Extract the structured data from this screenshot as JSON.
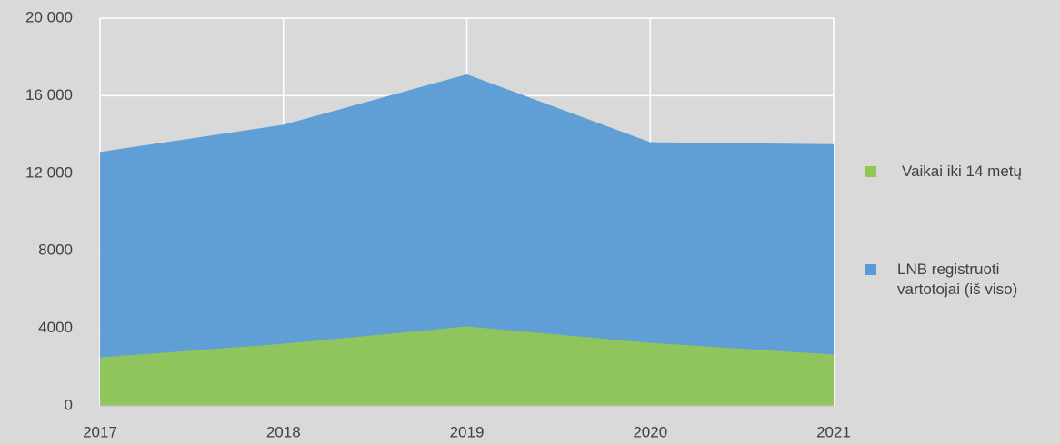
{
  "chart_data": {
    "type": "area",
    "categories": [
      "2017",
      "2018",
      "2019",
      "2020",
      "2021"
    ],
    "series": [
      {
        "name": "Vaikai iki 14 metų",
        "color": "#92c657",
        "values": [
          2500,
          3200,
          4100,
          3250,
          2650
        ]
      },
      {
        "name": "LNB registruoti vartotojai (iš viso)",
        "color": "#5b9bd5",
        "values": [
          13100,
          14500,
          17100,
          13600,
          13500
        ]
      }
    ],
    "ylim": [
      0,
      20000
    ],
    "yticks": [
      0,
      4000,
      8000,
      {
        "value": 12000,
        "label": "12 000"
      },
      {
        "value": 16000,
        "label": "16 000"
      },
      {
        "value": 20000,
        "label": "20 000"
      }
    ],
    "grid": true,
    "legend": "right"
  }
}
